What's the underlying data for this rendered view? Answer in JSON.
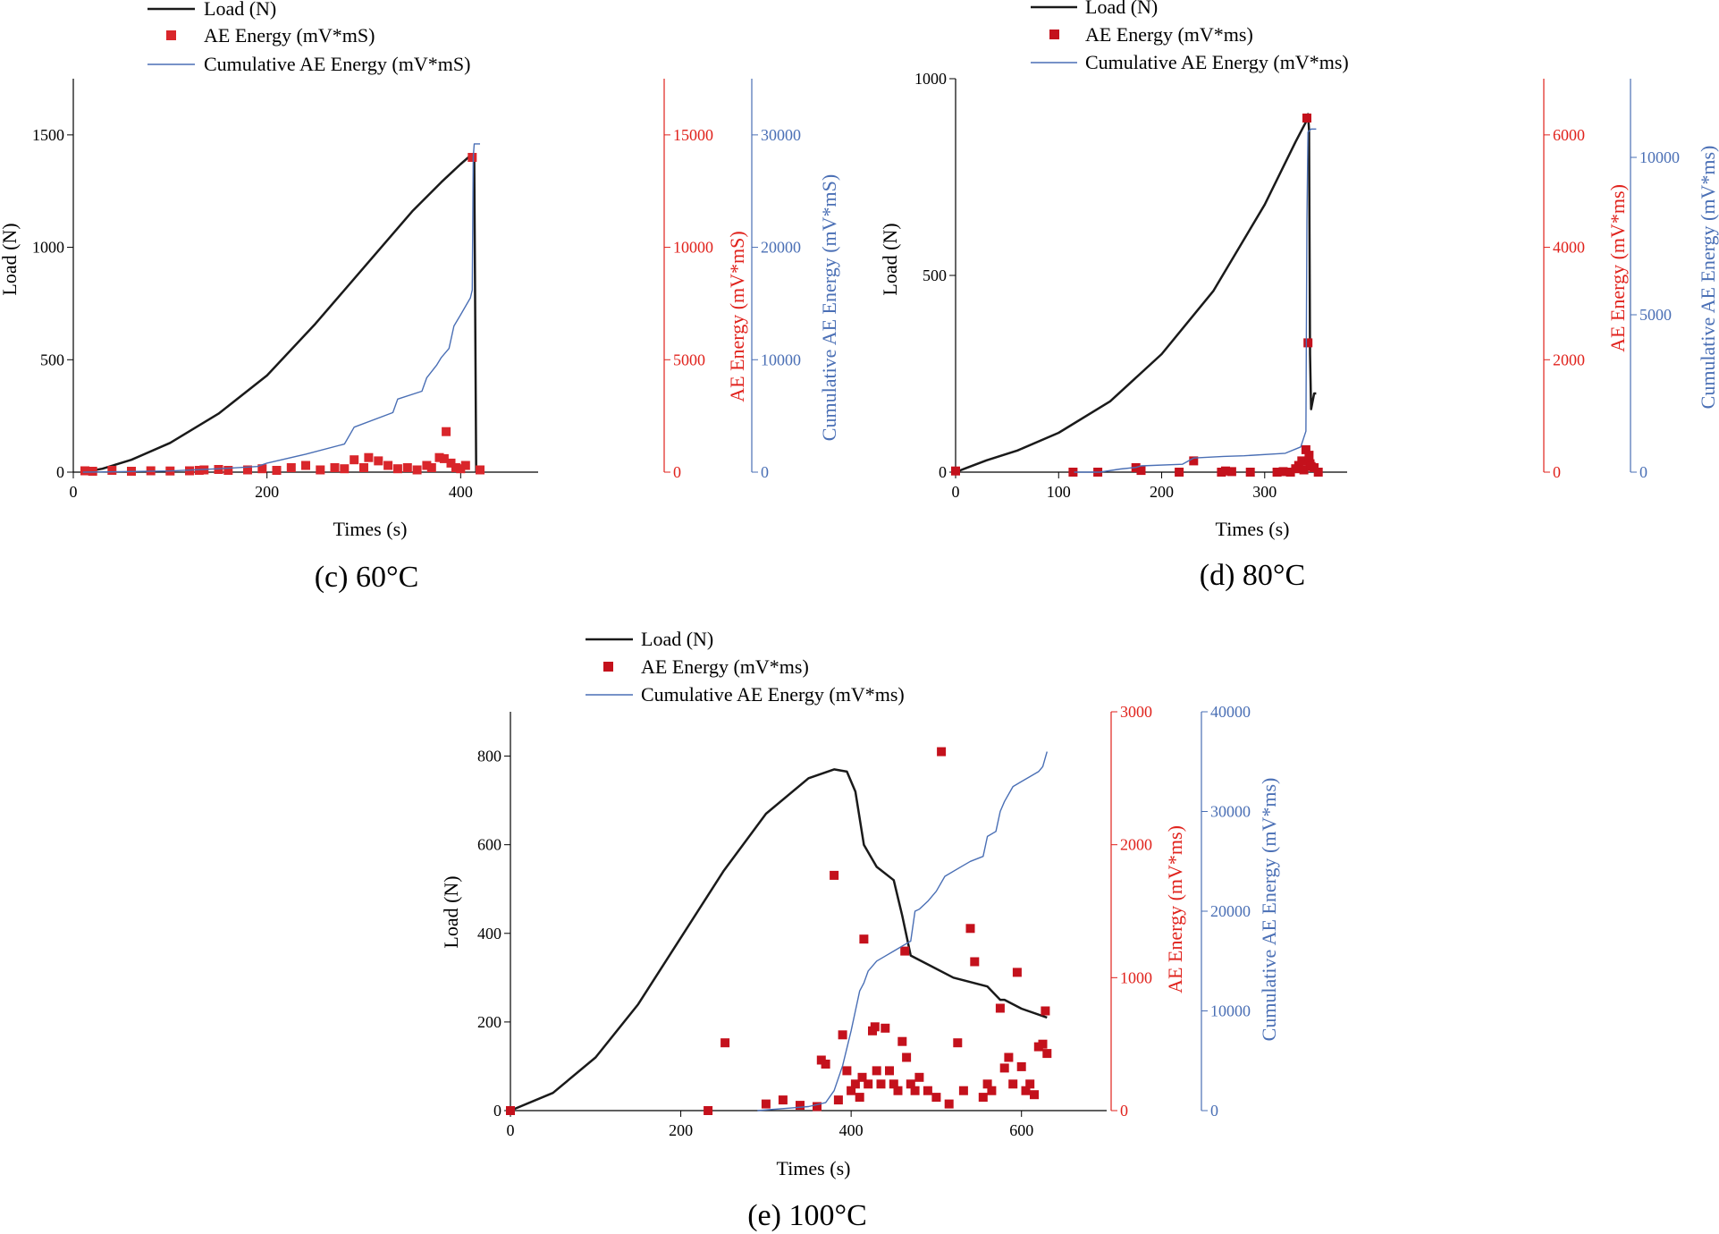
{
  "chart_data": [
    {
      "panel_id": "c",
      "type": "line",
      "caption": "(c) 60°C",
      "xlabel": "Times (s)",
      "ylabel": "Load (N)",
      "y2label": "AE Energy (mV*mS)",
      "y3label": "Cumulative AE Energy (mV*mS)",
      "legend": [
        "Load (N)",
        "AE Energy (mV*mS)",
        "Cumulative AE Energy (mV*mS)"
      ],
      "xlim": [
        0,
        480
      ],
      "xticks": [
        0,
        200,
        400
      ],
      "ylim": [
        0,
        1750
      ],
      "yticks": [
        0,
        500,
        1000,
        1500
      ],
      "y2lim": [
        0,
        17500
      ],
      "y2ticks": [
        0,
        5000,
        10000,
        15000
      ],
      "y3lim": [
        0,
        35000
      ],
      "y3ticks": [
        0,
        10000,
        20000,
        30000
      ],
      "colors": {
        "load": "#1a1a1a",
        "ae": "#d9262b",
        "cum": "#4a6fb5",
        "y2axis": "#e0221c",
        "y3axis": "#4a6fb5"
      },
      "series": [
        {
          "name": "Load (N)",
          "kind": "line",
          "axis": "y",
          "x": [
            10,
            30,
            60,
            100,
            150,
            200,
            250,
            300,
            350,
            380,
            400,
            412,
            414,
            416
          ],
          "y": [
            0,
            15,
            55,
            130,
            260,
            430,
            660,
            910,
            1160,
            1290,
            1370,
            1415,
            1410,
            0
          ]
        },
        {
          "name": "AE Energy (mV*mS)",
          "kind": "scatter",
          "axis": "y2",
          "x": [
            12,
            20,
            40,
            60,
            80,
            100,
            120,
            130,
            135,
            150,
            160,
            180,
            195,
            210,
            225,
            240,
            255,
            270,
            280,
            290,
            300,
            305,
            315,
            325,
            335,
            345,
            355,
            365,
            370,
            378,
            383,
            385,
            390,
            395,
            400,
            405,
            412,
            420
          ],
          "y": [
            60,
            40,
            80,
            40,
            60,
            50,
            60,
            80,
            100,
            120,
            80,
            100,
            150,
            80,
            200,
            300,
            100,
            200,
            150,
            550,
            200,
            650,
            500,
            300,
            150,
            200,
            100,
            300,
            200,
            650,
            600,
            1800,
            400,
            200,
            150,
            300,
            14000,
            100
          ]
        },
        {
          "name": "Cumulative AE Energy (mV*mS)",
          "kind": "line",
          "axis": "y3",
          "x": [
            10,
            100,
            150,
            190,
            200,
            240,
            280,
            290,
            330,
            335,
            360,
            365,
            375,
            380,
            388,
            393,
            400,
            410,
            412,
            413,
            414,
            420
          ],
          "y": [
            0,
            100,
            300,
            500,
            800,
            1600,
            2500,
            4000,
            5300,
            6500,
            7200,
            8400,
            9500,
            10200,
            11000,
            13000,
            14000,
            15500,
            16200,
            28000,
            29200,
            29200
          ]
        }
      ]
    },
    {
      "panel_id": "d",
      "type": "line",
      "caption": "(d) 80°C",
      "xlabel": "Times (s)",
      "ylabel": "Load (N)",
      "y2label": "AE Energy (mV*ms)",
      "y3label": "Cumulative AE Energy (mV*ms)",
      "legend": [
        "Load (N)",
        "AE Energy (mV*ms)",
        "Cumulative AE Energy (mV*ms)"
      ],
      "xlim": [
        0,
        380
      ],
      "xticks": [
        0,
        100,
        200,
        300
      ],
      "ylim": [
        0,
        1000
      ],
      "yticks": [
        0,
        500,
        1000
      ],
      "y2lim": [
        0,
        7000
      ],
      "y2ticks": [
        0,
        2000,
        4000,
        6000
      ],
      "y3lim": [
        0,
        12500
      ],
      "y3ticks": [
        0,
        5000,
        10000
      ],
      "colors": {
        "load": "#1a1a1a",
        "ae": "#c4111c",
        "cum": "#4a6fb5",
        "y2axis": "#e0221c",
        "y3axis": "#4a6fb5"
      },
      "series": [
        {
          "name": "Load (N)",
          "kind": "line",
          "axis": "y",
          "x": [
            0,
            10,
            30,
            60,
            100,
            150,
            200,
            250,
            300,
            330,
            340,
            342,
            343,
            344,
            345,
            348,
            350
          ],
          "y": [
            0,
            10,
            30,
            55,
            100,
            180,
            300,
            460,
            680,
            840,
            890,
            910,
            870,
            300,
            160,
            200,
            200
          ]
        },
        {
          "name": "AE Energy (mV*ms)",
          "kind": "scatter",
          "axis": "y2",
          "x": [
            0,
            114,
            138,
            175,
            180,
            217,
            231,
            258,
            262,
            268,
            286,
            312,
            318,
            325,
            330,
            333,
            336,
            338,
            340,
            341,
            342,
            343,
            344,
            345,
            348,
            352
          ],
          "y": [
            20,
            0,
            0,
            80,
            30,
            0,
            200,
            0,
            20,
            10,
            0,
            0,
            10,
            0,
            60,
            120,
            200,
            40,
            400,
            6300,
            2300,
            300,
            150,
            100,
            80,
            0
          ]
        },
        {
          "name": "Cumulative AE Energy (mV*ms)",
          "kind": "line",
          "axis": "y3",
          "x": [
            115,
            140,
            160,
            175,
            180,
            220,
            231,
            260,
            280,
            320,
            335,
            340,
            341,
            342,
            345,
            350
          ],
          "y": [
            0,
            0,
            100,
            150,
            200,
            250,
            450,
            500,
            520,
            600,
            800,
            1300,
            8000,
            10800,
            10900,
            10900
          ]
        }
      ]
    },
    {
      "panel_id": "e",
      "type": "line",
      "caption": "(e) 100°C",
      "xlabel": "Times (s)",
      "ylabel": "Load (N)",
      "y2label": "AE Energy (mV*ms)",
      "y3label": "Cumulative AE Energy (mV*ms)",
      "legend": [
        "Load (N)",
        "AE Energy (mV*ms)",
        "Cumulative AE Energy (mV*ms)"
      ],
      "xlim": [
        0,
        700
      ],
      "xticks": [
        0,
        200,
        400,
        600
      ],
      "ylim": [
        0,
        900
      ],
      "yticks": [
        0,
        200,
        400,
        600,
        800
      ],
      "y2lim": [
        0,
        3000
      ],
      "y2ticks": [
        0,
        1000,
        2000,
        3000
      ],
      "y3lim": [
        0,
        40000
      ],
      "y3ticks": [
        0,
        10000,
        20000,
        30000,
        40000
      ],
      "colors": {
        "load": "#1a1a1a",
        "ae": "#c4111c",
        "cum": "#4a6fb5",
        "y2axis": "#e0221c",
        "y3axis": "#4a6fb5"
      },
      "series": [
        {
          "name": "Load (N)",
          "kind": "line",
          "axis": "y",
          "x": [
            0,
            50,
            100,
            150,
            200,
            250,
            300,
            350,
            380,
            395,
            405,
            415,
            430,
            450,
            460,
            470,
            490,
            520,
            560,
            575,
            580,
            600,
            630
          ],
          "y": [
            0,
            40,
            120,
            240,
            390,
            540,
            670,
            750,
            770,
            765,
            720,
            600,
            550,
            520,
            440,
            350,
            330,
            300,
            280,
            250,
            250,
            230,
            210
          ]
        },
        {
          "name": "AE Energy (mV*ms)",
          "kind": "scatter",
          "axis": "y2",
          "x": [
            0,
            232,
            252,
            300,
            320,
            340,
            360,
            365,
            370,
            380,
            385,
            390,
            395,
            400,
            405,
            410,
            413,
            415,
            420,
            425,
            428,
            430,
            435,
            440,
            445,
            450,
            455,
            460,
            463,
            465,
            470,
            475,
            480,
            490,
            500,
            506,
            515,
            525,
            532,
            540,
            545,
            555,
            560,
            565,
            575,
            580,
            585,
            590,
            595,
            600,
            605,
            610,
            615,
            620,
            625,
            628,
            630
          ],
          "y": [
            0,
            0,
            510,
            50,
            80,
            40,
            30,
            380,
            350,
            1770,
            80,
            570,
            300,
            150,
            200,
            100,
            250,
            1290,
            200,
            600,
            630,
            300,
            200,
            620,
            300,
            200,
            150,
            520,
            1200,
            400,
            200,
            150,
            250,
            150,
            100,
            2700,
            50,
            510,
            150,
            1370,
            1120,
            100,
            200,
            150,
            770,
            320,
            400,
            200,
            1040,
            330,
            150,
            200,
            120,
            480,
            500,
            750,
            430
          ]
        },
        {
          "name": "Cumulative AE Energy (mV*ms)",
          "kind": "line",
          "axis": "y3",
          "x": [
            290,
            350,
            370,
            380,
            390,
            400,
            405,
            410,
            415,
            420,
            430,
            440,
            450,
            460,
            470,
            475,
            480,
            490,
            500,
            510,
            530,
            540,
            555,
            560,
            570,
            575,
            580,
            590,
            600,
            610,
            620,
            625,
            630
          ],
          "y": [
            0,
            400,
            800,
            2000,
            4500,
            8000,
            10000,
            12000,
            12800,
            14000,
            15000,
            15500,
            16000,
            16500,
            17000,
            20000,
            20200,
            21000,
            22000,
            23500,
            24500,
            25000,
            25500,
            27500,
            28000,
            30000,
            31000,
            32500,
            33000,
            33500,
            34000,
            34500,
            36000
          ]
        }
      ]
    }
  ]
}
